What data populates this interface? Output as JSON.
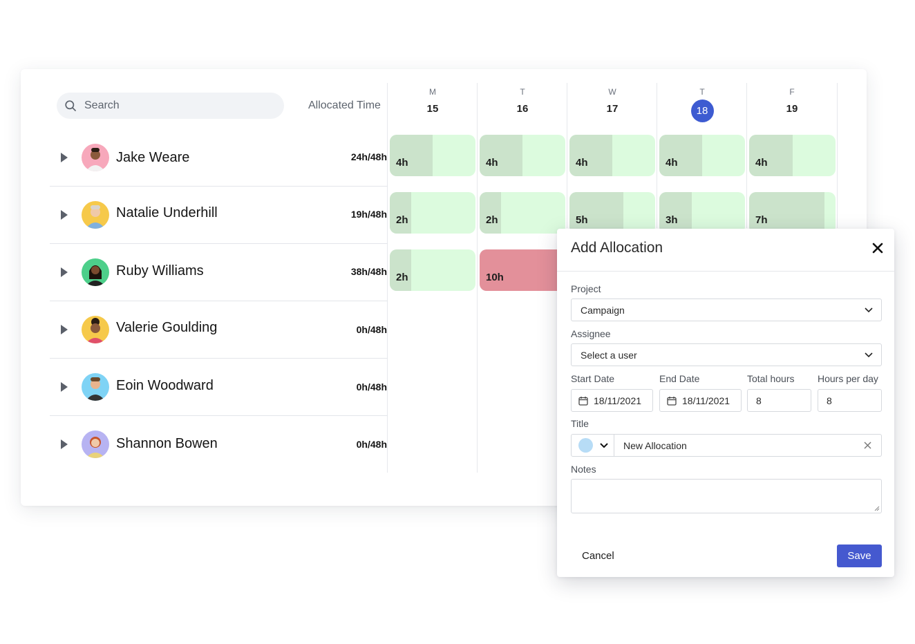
{
  "search": {
    "placeholder": "Search"
  },
  "columns": {
    "allocated_time": "Allocated Time"
  },
  "days": [
    {
      "weekday": "M",
      "date": "15",
      "today": false
    },
    {
      "weekday": "T",
      "date": "16",
      "today": false
    },
    {
      "weekday": "W",
      "date": "17",
      "today": false
    },
    {
      "weekday": "T",
      "date": "18",
      "today": true
    },
    {
      "weekday": "F",
      "date": "19",
      "today": false
    }
  ],
  "people": [
    {
      "name": "Jake Weare",
      "allocated": "24h/48h"
    },
    {
      "name": "Natalie Underhill",
      "allocated": "19h/48h"
    },
    {
      "name": "Ruby Williams",
      "allocated": "38h/48h"
    },
    {
      "name": "Valerie Goulding",
      "allocated": "0h/48h"
    },
    {
      "name": "Eoin Woodward",
      "allocated": "0h/48h"
    },
    {
      "name": "Shannon Bowen",
      "allocated": "0h/48h"
    }
  ],
  "allocations": {
    "row0": [
      {
        "label": "4h",
        "hours": 4
      },
      {
        "label": "4h",
        "hours": 4
      },
      {
        "label": "4h",
        "hours": 4
      },
      {
        "label": "4h",
        "hours": 4
      },
      {
        "label": "4h",
        "hours": 4
      }
    ],
    "row1": [
      {
        "label": "2h",
        "hours": 2
      },
      {
        "label": "2h",
        "hours": 2
      },
      {
        "label": "5h",
        "hours": 5
      },
      {
        "label": "3h",
        "hours": 3
      },
      {
        "label": "7h",
        "hours": 7
      }
    ],
    "row2": [
      {
        "label": "2h",
        "hours": 2
      },
      {
        "label": "10h",
        "hours": 10,
        "overallocated": true
      }
    ]
  },
  "modal": {
    "title": "Add Allocation",
    "project_label": "Project",
    "project_value": "Campaign",
    "assignee_label": "Assignee",
    "assignee_value": "Select a user",
    "start_date_label": "Start Date",
    "start_date_value": "18/11/2021",
    "end_date_label": "End Date",
    "end_date_value": "18/11/2021",
    "total_hours_label": "Total hours",
    "total_hours_value": "8",
    "hours_per_day_label": "Hours per day",
    "hours_per_day_value": "8",
    "title_label": "Title",
    "title_value": "New Allocation",
    "title_color": "#b7dcf6",
    "notes_label": "Notes",
    "cancel_label": "Cancel",
    "save_label": "Save"
  },
  "colors": {
    "accent": "#3d5bd1",
    "allocation_bg": "#dcfbde",
    "allocation_fill": "#cbe3cb",
    "overallocated": "#e3909a"
  }
}
